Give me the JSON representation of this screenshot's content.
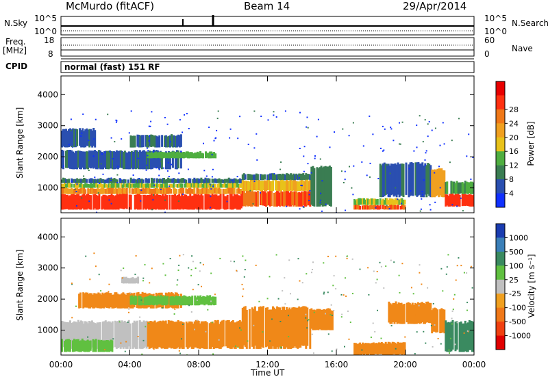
{
  "header": {
    "station": "McMurdo (fitACF)",
    "beam": "Beam 14",
    "date": "29/Apr/2014"
  },
  "top_panel": {
    "nsky_label": "N.Sky",
    "nsky_top": "10^5",
    "nsky_bottom": "10^0",
    "nsearch_label": "N.Search",
    "nsearch_top": "10^5",
    "nsearch_bottom": "10^0",
    "freq_label": "Freq.",
    "freq_unit": "[MHz]",
    "freq_top": "18",
    "freq_bottom": "8",
    "nave_label": "Nave",
    "nave_top": "60",
    "nave_bottom": "0",
    "cpid_label": "CPID",
    "cpid_text": "normal (fast) 151 RF"
  },
  "chart_data": [
    {
      "type": "heatmap",
      "name": "power",
      "ylabel": "Slant Range [km]",
      "ylim": [
        200,
        4600
      ],
      "yticks": [
        "1000",
        "2000",
        "3000",
        "4000"
      ],
      "xlim": [
        0,
        24
      ],
      "xticks": [
        "00:00",
        "04:00",
        "08:00",
        "12:00",
        "16:00",
        "20:00",
        "00:00"
      ],
      "colorbar": {
        "label": "Power [dB]",
        "ticks": [
          "4",
          "8",
          "12",
          "16",
          "20",
          "24",
          "28"
        ],
        "colors": [
          "#1030ff",
          "#2a4fb0",
          "#3a7d52",
          "#4fae40",
          "#e8c21a",
          "#f0a020",
          "#f07818",
          "#ff3010",
          "#e80000"
        ]
      },
      "echo_regions": [
        {
          "t0": 0.0,
          "t1": 10.5,
          "r0": 300,
          "r1": 800,
          "level": 28
        },
        {
          "t0": 0.0,
          "t1": 10.5,
          "r0": 800,
          "r1": 1000,
          "level": 22
        },
        {
          "t0": 0.0,
          "t1": 10.5,
          "r0": 1000,
          "r1": 1150,
          "level": 14
        },
        {
          "t0": 0.0,
          "t1": 10.5,
          "r0": 1150,
          "r1": 1300,
          "level": 6
        },
        {
          "t0": 10.5,
          "t1": 14.5,
          "r0": 400,
          "r1": 900,
          "level": 26
        },
        {
          "t0": 10.5,
          "t1": 14.5,
          "r0": 900,
          "r1": 1250,
          "level": 18
        },
        {
          "t0": 10.5,
          "t1": 14.5,
          "r0": 1250,
          "r1": 1450,
          "level": 7
        },
        {
          "t0": 14.5,
          "t1": 15.8,
          "r0": 400,
          "r1": 1700,
          "level": 8
        },
        {
          "t0": 17.0,
          "t1": 20.0,
          "r0": 300,
          "r1": 450,
          "level": 26
        },
        {
          "t0": 17.0,
          "t1": 20.0,
          "r0": 450,
          "r1": 650,
          "level": 14
        },
        {
          "t0": 18.5,
          "t1": 21.5,
          "r0": 700,
          "r1": 1800,
          "level": 5
        },
        {
          "t0": 21.5,
          "t1": 22.3,
          "r0": 700,
          "r1": 1600,
          "level": 20
        },
        {
          "t0": 22.3,
          "t1": 24.0,
          "r0": 400,
          "r1": 800,
          "level": 28
        },
        {
          "t0": 22.3,
          "t1": 24.0,
          "r0": 800,
          "r1": 1200,
          "level": 10
        },
        {
          "t0": 0.0,
          "t1": 7.0,
          "r0": 1600,
          "r1": 2200,
          "level": 5
        },
        {
          "t0": 5.0,
          "t1": 9.0,
          "r0": 1950,
          "r1": 2150,
          "level": 12
        },
        {
          "t0": 0.0,
          "t1": 2.0,
          "r0": 2300,
          "r1": 2900,
          "level": 5
        },
        {
          "t0": 4.0,
          "t1": 7.0,
          "r0": 2300,
          "r1": 2700,
          "level": 6
        }
      ]
    },
    {
      "type": "heatmap",
      "name": "velocity",
      "ylabel": "Slant Range [km]",
      "ylim": [
        200,
        4600
      ],
      "yticks": [
        "1000",
        "2000",
        "3000",
        "4000"
      ],
      "xlim": [
        0,
        24
      ],
      "xticks": [
        "00:00",
        "04:00",
        "08:00",
        "12:00",
        "16:00",
        "20:00",
        "00:00"
      ],
      "xlabel": "Time UT",
      "colorbar": {
        "label": "Velocity [m s⁻¹]",
        "ticks": [
          "1000",
          "500",
          "100",
          "25",
          "-25",
          "-100",
          "-500",
          "-1000"
        ],
        "colors": [
          "#1a3cb0",
          "#3a7fb8",
          "#3a8a60",
          "#60c040",
          "#c0c0c0",
          "#f0a020",
          "#f07818",
          "#f04010",
          "#e00000"
        ]
      },
      "echo_regions": [
        {
          "t0": 0.0,
          "t1": 5.0,
          "r0": 400,
          "r1": 1300,
          "level": "gray"
        },
        {
          "t0": 5.0,
          "t1": 10.5,
          "r0": 400,
          "r1": 1300,
          "level": "orange"
        },
        {
          "t0": 0.0,
          "t1": 3.0,
          "r0": 300,
          "r1": 700,
          "level": "green"
        },
        {
          "t0": 10.5,
          "t1": 14.5,
          "r0": 400,
          "r1": 1750,
          "level": "orange"
        },
        {
          "t0": 14.5,
          "t1": 15.8,
          "r0": 1000,
          "r1": 1700,
          "level": "orange"
        },
        {
          "t0": 17.0,
          "t1": 20.0,
          "r0": 200,
          "r1": 600,
          "level": "orange"
        },
        {
          "t0": 19.0,
          "t1": 21.5,
          "r0": 1200,
          "r1": 1900,
          "level": "orange"
        },
        {
          "t0": 21.5,
          "t1": 22.3,
          "r0": 900,
          "r1": 1700,
          "level": "orange"
        },
        {
          "t0": 22.3,
          "t1": 24.0,
          "r0": 300,
          "r1": 1300,
          "level": "darkgreen"
        },
        {
          "t0": 1.0,
          "t1": 7.0,
          "r0": 1700,
          "r1": 2200,
          "level": "orange"
        },
        {
          "t0": 4.0,
          "t1": 9.0,
          "r0": 1800,
          "r1": 2100,
          "level": "green"
        },
        {
          "t0": 3.5,
          "t1": 4.5,
          "r0": 2500,
          "r1": 2700,
          "level": "gray"
        }
      ]
    }
  ]
}
